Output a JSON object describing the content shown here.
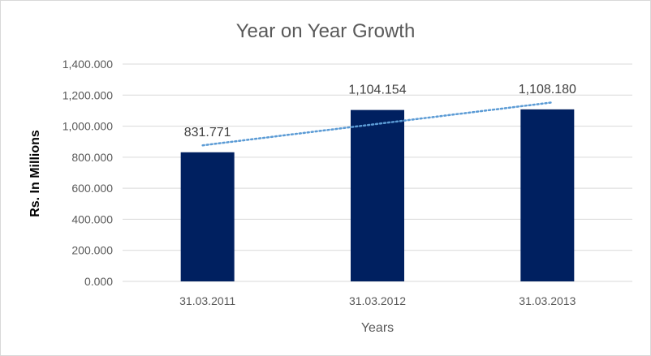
{
  "chart_data": {
    "type": "bar",
    "title": "Year on Year Growth",
    "xlabel": "Years",
    "ylabel": "Rs. In Millions",
    "categories": [
      "31.03.2011",
      "31.03.2012",
      "31.03.2013"
    ],
    "values": [
      831.771,
      1104.154,
      1108.18
    ],
    "data_labels": [
      "831.771",
      "1,104.154",
      "1,108.180"
    ],
    "ylim": [
      0,
      1400
    ],
    "yticks": [
      0,
      200,
      400,
      600,
      800,
      1000,
      1200,
      1400
    ],
    "ytick_labels": [
      "0.000",
      "200.000",
      "400.000",
      "600.000",
      "800.000",
      "1,000.000",
      "1,200.000",
      "1,400.000"
    ],
    "trendline": {
      "type": "linear",
      "style": "dotted"
    },
    "grid": true,
    "legend": "none",
    "colors": {
      "bar": "#002060",
      "trendline": "#5B9BD5",
      "grid": "#d9d9d9",
      "text": "#595959"
    }
  }
}
